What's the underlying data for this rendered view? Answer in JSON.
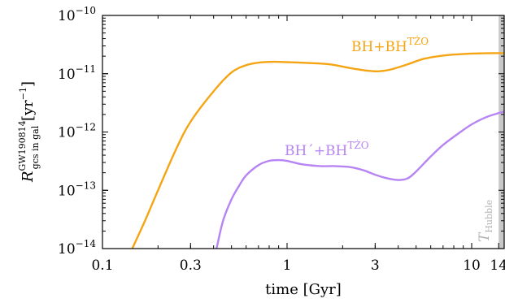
{
  "chart_data": {
    "type": "line",
    "xscale": "log",
    "yscale": "log",
    "xlim": [
      0.1,
      15
    ],
    "ylim": [
      1e-14,
      1e-10
    ],
    "grid": false,
    "xlabel": "time [Gyr]",
    "ylabel": {
      "base": "R",
      "sup": "GW190814",
      "sub": "gcs in gal",
      "unit_open": " [yr",
      "unit_exp": "−1",
      "unit_close": "]"
    },
    "xticks": [
      {
        "value": 0.1,
        "label": "0.1"
      },
      {
        "value": 0.3,
        "label": "0.3"
      },
      {
        "value": 1,
        "label": "1"
      },
      {
        "value": 3,
        "label": "3"
      },
      {
        "value": 10,
        "label": "10"
      },
      {
        "value": 14,
        "label": "14"
      }
    ],
    "yticks": [
      {
        "value": 1e-14,
        "mant": "10",
        "exp": "−14"
      },
      {
        "value": 1e-13,
        "mant": "10",
        "exp": "−13"
      },
      {
        "value": 1e-12,
        "mant": "10",
        "exp": "−12"
      },
      {
        "value": 1e-11,
        "mant": "10",
        "exp": "−11"
      },
      {
        "value": 1e-10,
        "mant": "10",
        "exp": "−10"
      }
    ],
    "hubble_band": {
      "x_start": 14,
      "x_end": 15,
      "color": "#c8c8c8",
      "label": "T",
      "label_sub": "Hubble"
    },
    "series": [
      {
        "name_main": "BH+BH",
        "name_sup": "TŻO",
        "color": "#f5a514",
        "x": [
          0.145,
          0.17,
          0.2,
          0.25,
          0.3,
          0.4,
          0.5,
          0.6,
          0.7,
          0.85,
          1.0,
          1.3,
          1.7,
          2.2,
          2.7,
          3.1,
          3.6,
          4.5,
          5.5,
          7.0,
          9.0,
          11.0,
          13.0,
          15.0
        ],
        "y": [
          1e-14,
          3e-14,
          1e-13,
          5e-13,
          1.5e-12,
          5e-12,
          1.05e-11,
          1.4e-11,
          1.55e-11,
          1.6e-11,
          1.58e-11,
          1.53e-11,
          1.45e-11,
          1.25e-11,
          1.13e-11,
          1.1e-11,
          1.17e-11,
          1.45e-11,
          1.8e-11,
          2.05e-11,
          2.18e-11,
          2.23e-11,
          2.25e-11,
          2.25e-11
        ]
      },
      {
        "name_main": "BH´+BH",
        "name_sup": "TŻO",
        "color": "#b784f4",
        "x": [
          0.415,
          0.45,
          0.5,
          0.55,
          0.6,
          0.7,
          0.8,
          0.9,
          1.0,
          1.2,
          1.5,
          1.8,
          2.2,
          2.6,
          3.0,
          3.5,
          4.0,
          4.5,
          5.0,
          6.0,
          7.0,
          8.5,
          10.0,
          12.0,
          15.0
        ],
        "y": [
          1e-14,
          3e-14,
          7e-14,
          1.2e-13,
          1.8e-13,
          2.7e-13,
          3.2e-13,
          3.3e-13,
          3.2e-13,
          2.8e-13,
          2.6e-13,
          2.6e-13,
          2.5e-13,
          2.2e-13,
          1.85e-13,
          1.6e-13,
          1.5e-13,
          1.6e-13,
          2.1e-13,
          3.8e-13,
          6e-13,
          9.5e-13,
          1.35e-12,
          1.8e-12,
          2.25e-12
        ]
      }
    ]
  }
}
